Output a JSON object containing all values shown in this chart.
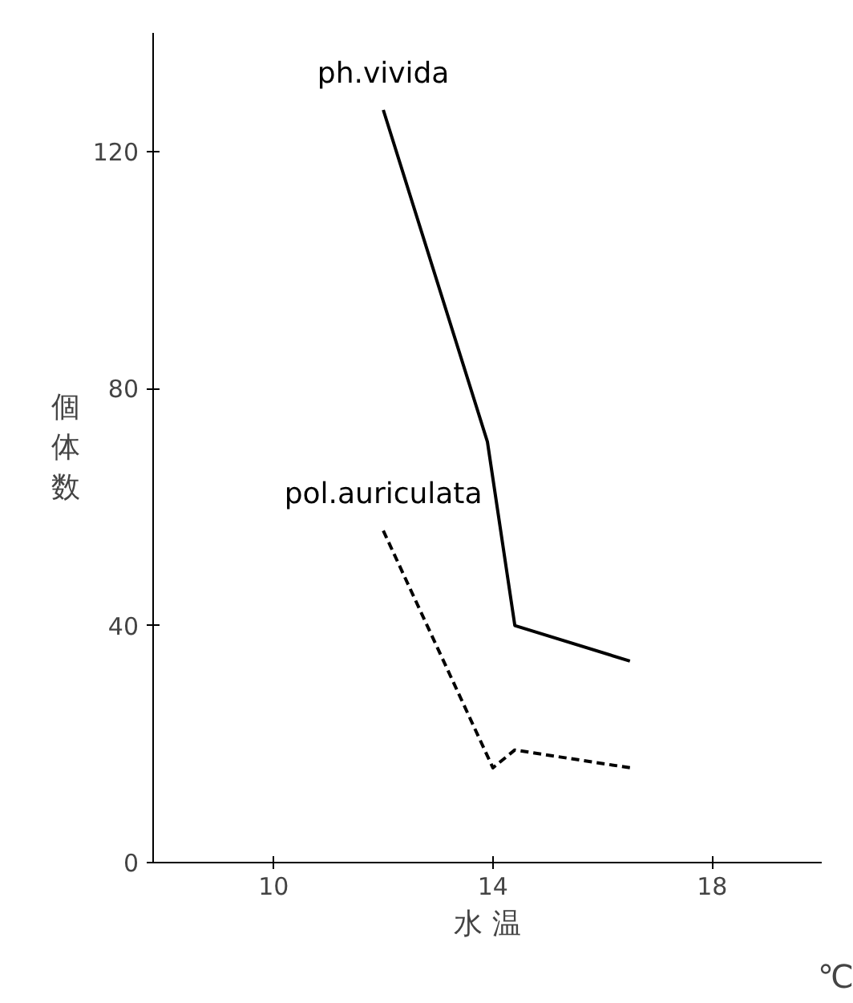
{
  "chart_data": {
    "type": "line",
    "xlabel": "水 温",
    "ylabel": "個体数",
    "annotations": [
      "℃"
    ],
    "xlim": [
      7.8,
      20
    ],
    "ylim": [
      0,
      140
    ],
    "xticks": [
      10,
      14,
      18
    ],
    "yticks": [
      0,
      40,
      80,
      120
    ],
    "grid": false,
    "marker": "none",
    "series": [
      {
        "name": "ph.vivida",
        "color": "#000000",
        "line_style": "solid",
        "x": [
          12.0,
          13.9,
          14.4,
          16.5
        ],
        "values": [
          127,
          71,
          40,
          34
        ]
      },
      {
        "name": "pol.auriculata",
        "color": "#000000",
        "line_style": "dashed",
        "x": [
          12.0,
          14.0,
          14.4,
          16.5
        ],
        "values": [
          56,
          16,
          19,
          16
        ]
      }
    ]
  }
}
